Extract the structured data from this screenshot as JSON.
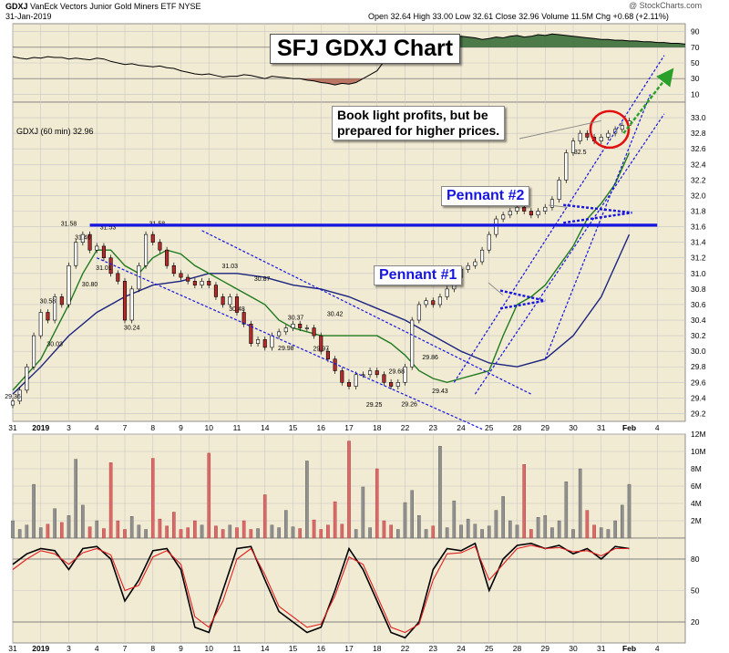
{
  "header": {
    "symbol": "GDXJ",
    "name": "VanEck Vectors Junior Gold Miners ETF",
    "exchange": "NYSE",
    "date": "31-Jan-2019",
    "copyright": "@ StockCharts.com",
    "quote": "Open 32.64  High 33.00  Low 32.61  Close 32.96  Volume 11.5M  Chg +0.68 (+2.11%)",
    "price_label": "GDXJ (60 min) 32.96"
  },
  "callouts": {
    "title": "SFJ GDXJ Chart",
    "note_line1": "Book light profits, but be",
    "note_line2": "prepared for higher prices.",
    "pennant1": "Pennant #1",
    "pennant2": "Pennant #2"
  },
  "colors": {
    "panel_bg": "#f2ebd3",
    "grid": "#c6c6c6",
    "up_candle": "#ffffff",
    "down_candle": "#b52a2a",
    "ma_short": "#1f7a1f",
    "ma_long": "#1a237e",
    "annotation": "#1616e0",
    "circle": "#e01010",
    "arrow": "#2aa02a",
    "volume_up": "#909090",
    "volume_down": "#d96a6a",
    "rsi_fill_high": "#3a6e3a",
    "rsi_fill_low": "#b46a5a",
    "stoch_k": "#000000",
    "stoch_d": "#e02020"
  },
  "chart_data": [
    {
      "type": "line",
      "name": "rsi",
      "ylim": [
        0,
        100
      ],
      "yticks": [
        10,
        30,
        50,
        70,
        90
      ],
      "x": [
        0,
        0.5,
        1,
        1.5,
        2,
        2.5,
        3,
        3.5,
        4,
        4.5,
        5,
        5.5,
        6,
        6.5,
        7,
        7.5,
        8,
        8.5,
        9,
        9.5,
        10,
        10.5,
        11,
        11.5,
        12,
        12.5,
        13,
        13.5,
        14,
        14.5,
        15,
        15.5,
        16,
        16.5,
        17,
        17.5,
        18,
        18.5,
        19,
        19.5,
        20,
        20.5,
        21,
        21.5,
        22,
        22.5,
        23,
        23.5,
        24,
        24.5,
        25,
        25.5,
        26,
        26.5,
        27,
        27.5,
        28,
        28.5,
        29,
        29.5,
        30,
        30.5,
        31,
        31.5,
        32,
        32.5,
        33,
        33.5,
        34,
        34.5,
        35,
        35.5,
        36,
        36.5,
        37,
        37.5,
        38,
        38.5,
        39,
        39.5,
        40,
        40.5,
        41,
        41.5,
        42,
        42.5,
        43,
        43.5,
        44,
        44.5,
        45,
        45.5,
        46,
        46.5,
        47,
        47.5,
        48
      ],
      "values": [
        58,
        56,
        55,
        57,
        56,
        58,
        57,
        57,
        55,
        56,
        55,
        54,
        56,
        55,
        52,
        50,
        48,
        49,
        47,
        46,
        45,
        46,
        44,
        43,
        40,
        38,
        36,
        35,
        36,
        34,
        32,
        33,
        33,
        35,
        34,
        32,
        30,
        33,
        32,
        31,
        30,
        30,
        28,
        27,
        25,
        24,
        22,
        24,
        23,
        25,
        30,
        35,
        40,
        52,
        60,
        70,
        75,
        78,
        80,
        82,
        81,
        83,
        80,
        82,
        84,
        83,
        82,
        80,
        81,
        83,
        82,
        84,
        85,
        83,
        84,
        86,
        85,
        87,
        86,
        85,
        84,
        83,
        82,
        81,
        80,
        80,
        79,
        79,
        78,
        78,
        77,
        77,
        76,
        76,
        75,
        75,
        74
      ]
    },
    {
      "type": "line",
      "name": "price",
      "title": "GDXJ (60 min) 32.96",
      "ylim": [
        29.1,
        33.2
      ],
      "yticks": [
        29.2,
        29.4,
        29.6,
        29.8,
        30.0,
        30.2,
        30.4,
        30.6,
        30.8,
        31.0,
        31.2,
        31.4,
        31.6,
        31.8,
        32.0,
        32.2,
        32.4,
        32.6,
        32.8,
        33.0
      ],
      "x_tick_labels": [
        "31",
        "2019",
        "3",
        "4",
        "7",
        "8",
        "9",
        "10",
        "11",
        "14",
        "15",
        "16",
        "17",
        "18",
        "22",
        "23",
        "24",
        "25",
        "28",
        "29",
        "30",
        "31",
        "Feb",
        "4"
      ],
      "x_tick_positions": [
        0,
        2,
        4,
        6,
        8,
        10,
        12,
        14,
        16,
        18,
        20,
        22,
        24,
        26,
        28,
        30,
        32,
        34,
        36,
        38,
        40,
        42,
        44,
        46
      ],
      "close_x": [
        0,
        0.5,
        1,
        1.5,
        2,
        2.5,
        3,
        3.5,
        4,
        4.5,
        5,
        5.5,
        6,
        6.5,
        7,
        7.5,
        8,
        8.5,
        9,
        9.5,
        10,
        10.5,
        11,
        11.5,
        12,
        12.5,
        13,
        13.5,
        14,
        14.5,
        15,
        15.5,
        16,
        16.5,
        17,
        17.5,
        18,
        18.5,
        19,
        19.5,
        20,
        20.5,
        21,
        21.5,
        22,
        22.5,
        23,
        23.5,
        24,
        24.5,
        25,
        25.5,
        26,
        26.5,
        27,
        27.5,
        28,
        28.5,
        29,
        29.5,
        30,
        30.5,
        31,
        31.5,
        32,
        32.5,
        33,
        33.5,
        34,
        34.5,
        35,
        35.5,
        36,
        36.5,
        37,
        37.5,
        38,
        38.5,
        39,
        39.5,
        40,
        40.5,
        41,
        41.5,
        42,
        42.5,
        43,
        43.5,
        44
      ],
      "close": [
        29.36,
        29.5,
        29.8,
        30.2,
        30.5,
        30.4,
        30.7,
        30.6,
        31.1,
        31.4,
        31.5,
        31.3,
        31.35,
        31.2,
        31.0,
        30.9,
        30.4,
        30.8,
        31.1,
        31.5,
        31.4,
        31.3,
        31.1,
        31.0,
        30.95,
        30.9,
        30.85,
        30.9,
        30.85,
        30.7,
        30.6,
        30.7,
        30.5,
        30.35,
        30.1,
        30.15,
        30.05,
        30.2,
        30.25,
        30.3,
        30.35,
        30.3,
        30.3,
        30.2,
        30.0,
        29.9,
        29.75,
        29.6,
        29.55,
        29.7,
        29.7,
        29.75,
        29.7,
        29.6,
        29.55,
        29.6,
        29.8,
        30.4,
        30.6,
        30.65,
        30.6,
        30.7,
        30.8,
        30.95,
        31.05,
        31.1,
        31.15,
        31.3,
        31.5,
        31.7,
        31.75,
        31.8,
        31.85,
        31.8,
        31.75,
        31.8,
        31.85,
        31.95,
        32.2,
        32.55,
        32.7,
        32.8,
        32.75,
        32.7,
        32.75,
        32.8,
        32.85,
        32.9,
        32.96
      ],
      "ma_short_x": [
        0,
        2,
        4,
        5,
        6,
        7,
        8,
        9,
        10,
        11,
        12,
        13,
        14,
        15,
        16,
        17,
        18,
        19,
        20,
        21,
        22,
        23,
        24,
        25,
        26,
        27,
        28,
        29,
        30,
        31,
        32,
        33,
        34,
        35,
        36,
        37,
        38,
        39,
        40,
        41,
        42,
        43,
        44
      ],
      "ma_short": [
        29.5,
        29.9,
        30.6,
        31.0,
        31.3,
        31.3,
        31.1,
        31.0,
        31.2,
        31.3,
        31.25,
        31.1,
        31.0,
        30.9,
        30.8,
        30.7,
        30.6,
        30.4,
        30.3,
        30.25,
        30.2,
        30.2,
        30.2,
        30.2,
        30.2,
        30.1,
        29.95,
        29.75,
        29.65,
        29.6,
        29.65,
        29.7,
        29.75,
        30.2,
        30.6,
        30.7,
        30.85,
        31.1,
        31.35,
        31.7,
        31.9,
        32.15,
        32.55
      ],
      "ma_long_x": [
        0,
        2,
        4,
        6,
        8,
        10,
        12,
        14,
        16,
        18,
        20,
        22,
        24,
        26,
        28,
        30,
        32,
        34,
        36,
        38,
        40,
        42,
        44
      ],
      "ma_long": [
        29.45,
        29.8,
        30.2,
        30.5,
        30.7,
        30.85,
        30.9,
        31.0,
        31.0,
        30.95,
        30.85,
        30.8,
        30.7,
        30.55,
        30.4,
        30.2,
        30.0,
        29.85,
        29.8,
        29.9,
        30.2,
        30.7,
        31.5
      ],
      "labels": [
        {
          "text": "29.36",
          "x": 0,
          "y": 29.36
        },
        {
          "text": "30.03",
          "x": 3,
          "y": 30.03
        },
        {
          "text": "30.58",
          "x": 2.5,
          "y": 30.58
        },
        {
          "text": "30.80",
          "x": 5.5,
          "y": 30.8
        },
        {
          "text": "31.01",
          "x": 6.5,
          "y": 31.01
        },
        {
          "text": "31.40",
          "x": 5,
          "y": 31.4
        },
        {
          "text": "31.58",
          "x": 4,
          "y": 31.58
        },
        {
          "text": "31.53",
          "x": 6.8,
          "y": 31.53
        },
        {
          "text": "30.24",
          "x": 8.5,
          "y": 30.24
        },
        {
          "text": "31.58",
          "x": 10.3,
          "y": 31.58
        },
        {
          "text": "31.03",
          "x": 15.5,
          "y": 31.03
        },
        {
          "text": "30.87",
          "x": 17.8,
          "y": 30.87
        },
        {
          "text": "30.48",
          "x": 16,
          "y": 30.48
        },
        {
          "text": "30.37",
          "x": 20.2,
          "y": 30.37
        },
        {
          "text": "30.42",
          "x": 23,
          "y": 30.42
        },
        {
          "text": "29.98",
          "x": 19.5,
          "y": 29.98
        },
        {
          "text": "29.97",
          "x": 22,
          "y": 29.97
        },
        {
          "text": "29.68",
          "x": 27.4,
          "y": 29.68
        },
        {
          "text": "29.86",
          "x": 29.8,
          "y": 29.86
        },
        {
          "text": "29.43",
          "x": 30.5,
          "y": 29.43
        },
        {
          "text": "29.25",
          "x": 25.8,
          "y": 29.25
        },
        {
          "text": "29.26",
          "x": 28.3,
          "y": 29.26
        },
        {
          "text": "32.5",
          "x": 40.5,
          "y": 32.5
        }
      ]
    },
    {
      "type": "bar",
      "name": "volume",
      "ylim": [
        0,
        12
      ],
      "yticks": [
        2,
        4,
        6,
        8,
        10,
        12
      ],
      "ytick_labels": [
        "2M",
        "4M",
        "6M",
        "8M",
        "10M",
        "12M"
      ],
      "x": [
        0,
        0.5,
        1,
        1.5,
        2,
        2.5,
        3,
        3.5,
        4,
        4.5,
        5,
        5.5,
        6,
        6.5,
        7,
        7.5,
        8,
        8.5,
        9,
        9.5,
        10,
        10.5,
        11,
        11.5,
        12,
        12.5,
        13,
        13.5,
        14,
        14.5,
        15,
        15.5,
        16,
        16.5,
        17,
        17.5,
        18,
        18.5,
        19,
        19.5,
        20,
        20.5,
        21,
        21.5,
        22,
        22.5,
        23,
        23.5,
        24,
        24.5,
        25,
        25.5,
        26,
        26.5,
        27,
        27.5,
        28,
        28.5,
        29,
        29.5,
        30,
        30.5,
        31,
        31.5,
        32,
        32.5,
        33,
        33.5,
        34,
        34.5,
        35,
        35.5,
        36,
        36.5,
        37,
        37.5,
        38,
        38.5,
        39,
        39.5,
        40,
        40.5,
        41,
        41.5,
        42,
        42.5,
        43,
        43.5,
        44
      ],
      "values": [
        2.0,
        1.0,
        1.5,
        6.2,
        1.2,
        1.6,
        3.4,
        1.8,
        2.6,
        9.1,
        3.8,
        1.3,
        2.0,
        1.1,
        8.7,
        2.0,
        1.0,
        2.5,
        1.5,
        1.0,
        9.2,
        2.2,
        1.4,
        3.0,
        1.0,
        1.2,
        2.0,
        1.5,
        9.8,
        1.4,
        1.0,
        1.5,
        1.2,
        2.0,
        1.0,
        1.1,
        5.0,
        1.5,
        1.2,
        3.2,
        1.3,
        1.1,
        8.9,
        2.1,
        1.0,
        1.5,
        4.2,
        1.6,
        11.2,
        1.0,
        5.9,
        1.2,
        8.0,
        2.0,
        1.5,
        1.0,
        4.1,
        5.5,
        2.6,
        1.0,
        1.4,
        10.6,
        1.2,
        4.3,
        1.5,
        2.2,
        1.6,
        1.0,
        1.4,
        3.2,
        4.8,
        2.0,
        1.5,
        8.5,
        1.0,
        2.4,
        2.6,
        1.2,
        2.0,
        6.5,
        1.0,
        8.0,
        3.2,
        1.5,
        1.2,
        1.0,
        2.0,
        3.8,
        6.2
      ]
    },
    {
      "type": "line",
      "name": "stochastic",
      "ylim": [
        0,
        100
      ],
      "yticks": [
        20,
        50,
        80
      ],
      "x": [
        0,
        1,
        2,
        3,
        4,
        5,
        6,
        7,
        8,
        9,
        10,
        11,
        12,
        13,
        14,
        15,
        16,
        17,
        18,
        19,
        20,
        21,
        22,
        23,
        24,
        25,
        26,
        27,
        28,
        29,
        30,
        31,
        32,
        33,
        34,
        35,
        36,
        37,
        38,
        39,
        40,
        41,
        42,
        43,
        44
      ],
      "series": [
        {
          "values": [
            75,
            85,
            90,
            88,
            70,
            90,
            92,
            80,
            40,
            60,
            88,
            90,
            70,
            15,
            10,
            50,
            90,
            92,
            60,
            30,
            20,
            10,
            15,
            50,
            90,
            70,
            40,
            10,
            5,
            20,
            70,
            90,
            88,
            95,
            50,
            80,
            93,
            95,
            90,
            93,
            85,
            90,
            80,
            92,
            90
          ]
        },
        {
          "values": [
            70,
            80,
            88,
            85,
            75,
            86,
            90,
            84,
            50,
            55,
            82,
            88,
            75,
            25,
            15,
            40,
            80,
            90,
            65,
            35,
            25,
            15,
            18,
            45,
            82,
            75,
            45,
            15,
            10,
            18,
            60,
            85,
            86,
            92,
            60,
            75,
            90,
            93,
            90,
            91,
            87,
            88,
            83,
            90,
            90
          ]
        }
      ]
    }
  ]
}
